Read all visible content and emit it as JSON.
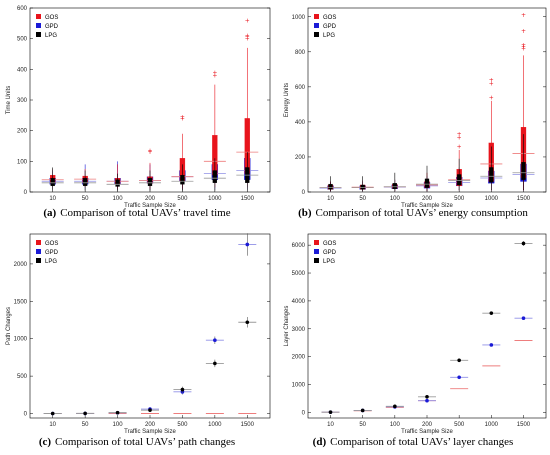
{
  "colors": {
    "GOS": "#e8141c",
    "GPD": "#1a1ad6",
    "LPG": "#000000",
    "median_gos": "#ee7d7d",
    "median_gpd": "#8f8fe6",
    "median_lpg": "#9a9a9a"
  },
  "chart_data": [
    {
      "panel": "a",
      "type": "box",
      "caption_bold": "(a)",
      "caption": "Comparison of total UAVs’ travel time",
      "xlabel": "Traffic Sample Size",
      "ylabel": "Time Units",
      "categories": [
        "10",
        "50",
        "100",
        "200",
        "500",
        "1000",
        "1500"
      ],
      "ylim": [
        0,
        600
      ],
      "yticks": [
        0,
        100,
        200,
        300,
        400,
        500,
        600
      ],
      "legend": {
        "entries": [
          "GOS",
          "GPD",
          "LPG"
        ],
        "position": "top-left"
      },
      "series": [
        {
          "name": "GOS",
          "boxes": [
            {
              "low": 10,
              "q1": 28,
              "median": 40,
              "q3": 55,
              "high": 75
            },
            {
              "low": 15,
              "q1": 30,
              "median": 42,
              "q3": 52,
              "high": 75
            },
            {
              "low": 10,
              "q1": 25,
              "median": 35,
              "q3": 45,
              "high": 90
            },
            {
              "low": 10,
              "q1": 28,
              "median": 38,
              "q3": 50,
              "high": 95,
              "outliers": [
                130,
                135
              ]
            },
            {
              "low": 10,
              "q1": 35,
              "median": 50,
              "q3": 110,
              "high": 190,
              "outliers": [
                240,
                245
              ]
            },
            {
              "low": 15,
              "q1": 55,
              "median": 100,
              "q3": 185,
              "high": 350,
              "outliers": [
                380,
                390
              ]
            },
            {
              "low": 15,
              "q1": 60,
              "median": 130,
              "q3": 240,
              "high": 470,
              "outliers": [
                500,
                505,
                510,
                560
              ]
            }
          ]
        },
        {
          "name": "GPD",
          "boxes": [
            {
              "low": 10,
              "q1": 25,
              "median": 35,
              "q3": 45,
              "high": 70
            },
            {
              "low": 10,
              "q1": 25,
              "median": 35,
              "q3": 45,
              "high": 90
            },
            {
              "low": 10,
              "q1": 25,
              "median": 35,
              "q3": 45,
              "high": 100
            },
            {
              "low": 10,
              "q1": 28,
              "median": 38,
              "q3": 50,
              "high": 90
            },
            {
              "low": 10,
              "q1": 35,
              "median": 50,
              "q3": 70,
              "high": 110
            },
            {
              "low": 10,
              "q1": 40,
              "median": 60,
              "q3": 90,
              "high": 130
            },
            {
              "low": 10,
              "q1": 40,
              "median": 70,
              "q3": 110,
              "high": 170
            }
          ]
        },
        {
          "name": "LPG",
          "boxes": [
            {
              "low": 5,
              "q1": 20,
              "median": 30,
              "q3": 45,
              "high": 80
            },
            {
              "low": 5,
              "q1": 20,
              "median": 30,
              "q3": 45,
              "high": 70
            },
            {
              "low": 5,
              "q1": 18,
              "median": 25,
              "q3": 40,
              "high": 60
            },
            {
              "low": 5,
              "q1": 20,
              "median": 30,
              "q3": 45,
              "high": 70
            },
            {
              "low": 5,
              "q1": 25,
              "median": 35,
              "q3": 55,
              "high": 90
            },
            {
              "low": 5,
              "q1": 30,
              "median": 45,
              "q3": 70,
              "high": 110
            },
            {
              "low": 5,
              "q1": 30,
              "median": 55,
              "q3": 80,
              "high": 130
            }
          ]
        }
      ]
    },
    {
      "panel": "b",
      "type": "box",
      "caption_bold": "(b)",
      "caption": "Comparison of total UAVs’ energy consumption",
      "xlabel": "Traffic Sample Size",
      "ylabel": "Energy Units",
      "categories": [
        "10",
        "50",
        "100",
        "200",
        "500",
        "1000",
        "1500"
      ],
      "ylim": [
        0,
        1050
      ],
      "yticks": [
        0,
        200,
        400,
        600,
        800,
        1000
      ],
      "legend": {
        "entries": [
          "GOS",
          "GPD",
          "LPG"
        ],
        "position": "top-left"
      },
      "series": [
        {
          "name": "GOS",
          "boxes": [
            {
              "low": 5,
              "q1": 15,
              "median": 25,
              "q3": 40,
              "high": 60
            },
            {
              "low": 5,
              "q1": 15,
              "median": 28,
              "q3": 40,
              "high": 65
            },
            {
              "low": 5,
              "q1": 20,
              "median": 30,
              "q3": 45,
              "high": 70
            },
            {
              "low": 5,
              "q1": 25,
              "median": 40,
              "q3": 60,
              "high": 110
            },
            {
              "low": 10,
              "q1": 35,
              "median": 70,
              "q3": 130,
              "high": 240,
              "outliers": [
                260,
                310,
                330
              ]
            },
            {
              "low": 10,
              "q1": 60,
              "median": 160,
              "q3": 280,
              "high": 520,
              "outliers": [
                540,
                620,
                640
              ]
            },
            {
              "low": 10,
              "q1": 80,
              "median": 220,
              "q3": 370,
              "high": 780,
              "outliers": [
                820,
                830,
                840,
                920,
                1010
              ]
            }
          ]
        },
        {
          "name": "GPD",
          "boxes": [
            {
              "low": 5,
              "q1": 15,
              "median": 22,
              "q3": 35,
              "high": 60
            },
            {
              "low": 5,
              "q1": 15,
              "median": 25,
              "q3": 35,
              "high": 60
            },
            {
              "low": 5,
              "q1": 18,
              "median": 28,
              "q3": 40,
              "high": 70
            },
            {
              "low": 5,
              "q1": 22,
              "median": 35,
              "q3": 55,
              "high": 90
            },
            {
              "low": 10,
              "q1": 35,
              "median": 55,
              "q3": 85,
              "high": 140
            },
            {
              "low": 10,
              "q1": 50,
              "median": 80,
              "q3": 120,
              "high": 220
            },
            {
              "low": 10,
              "q1": 60,
              "median": 100,
              "q3": 160,
              "high": 300
            }
          ]
        },
        {
          "name": "LPG",
          "boxes": [
            {
              "low": 5,
              "q1": 15,
              "median": 25,
              "q3": 45,
              "high": 90
            },
            {
              "low": 5,
              "q1": 15,
              "median": 25,
              "q3": 40,
              "high": 90
            },
            {
              "low": 5,
              "q1": 18,
              "median": 30,
              "q3": 50,
              "high": 110
            },
            {
              "low": 5,
              "q1": 25,
              "median": 45,
              "q3": 75,
              "high": 150
            },
            {
              "low": 10,
              "q1": 40,
              "median": 65,
              "q3": 100,
              "high": 190
            },
            {
              "low": 10,
              "q1": 55,
              "median": 90,
              "q3": 140,
              "high": 260
            },
            {
              "low": 10,
              "q1": 70,
              "median": 110,
              "q3": 170,
              "high": 330
            }
          ]
        }
      ]
    },
    {
      "panel": "c",
      "type": "scatter",
      "caption_bold": "(c)",
      "caption": "Comparison of total UAVs’ path changes",
      "xlabel": "Traffic Sample Size",
      "ylabel": "Path Changes",
      "categories": [
        "10",
        "50",
        "100",
        "200",
        "500",
        "1000",
        "1500"
      ],
      "ylim": [
        -60,
        2400
      ],
      "yticks": [
        0,
        500,
        1000,
        1500,
        2000
      ],
      "legend": {
        "entries": [
          "GOS",
          "GPD",
          "LPG"
        ],
        "position": "top-left"
      },
      "series": [
        {
          "name": "GOS",
          "values": [
            0,
            0,
            0,
            0,
            0,
            0,
            0
          ],
          "err": [
            0,
            0,
            0,
            0,
            0,
            0,
            0
          ]
        },
        {
          "name": "GPD",
          "values": [
            0,
            1,
            10,
            60,
            290,
            980,
            2260
          ],
          "err": [
            0,
            2,
            5,
            15,
            35,
            50,
            150
          ]
        },
        {
          "name": "LPG",
          "values": [
            0,
            2,
            12,
            45,
            320,
            670,
            1220
          ],
          "err": [
            0,
            2,
            5,
            15,
            40,
            50,
            70
          ]
        }
      ]
    },
    {
      "panel": "d",
      "type": "scatter",
      "caption_bold": "(d)",
      "caption": "Comparison of total UAVs’ layer changes",
      "xlabel": "Traffic Sample Size",
      "ylabel": "Layer Changes",
      "categories": [
        "10",
        "50",
        "100",
        "200",
        "500",
        "1000",
        "1500"
      ],
      "ylim": [
        -200,
        6400
      ],
      "yticks": [
        0,
        1000,
        2000,
        3000,
        4000,
        5000,
        6000
      ],
      "legend": {
        "entries": [
          "GOS",
          "GPD",
          "LPG"
        ],
        "position": "top-left"
      },
      "series": [
        {
          "name": "GOS",
          "values": [
            10,
            60,
            180,
            420,
            850,
            1670,
            2580
          ],
          "err": [
            0,
            0,
            0,
            0,
            0,
            0,
            0
          ]
        },
        {
          "name": "GPD",
          "values": [
            10,
            70,
            200,
            420,
            1260,
            2420,
            3380
          ],
          "err": [
            5,
            10,
            20,
            25,
            40,
            50,
            60
          ]
        },
        {
          "name": "LPG",
          "values": [
            10,
            70,
            220,
            560,
            1870,
            3560,
            6060
          ],
          "err": [
            5,
            10,
            20,
            25,
            40,
            60,
            90
          ]
        }
      ]
    }
  ]
}
